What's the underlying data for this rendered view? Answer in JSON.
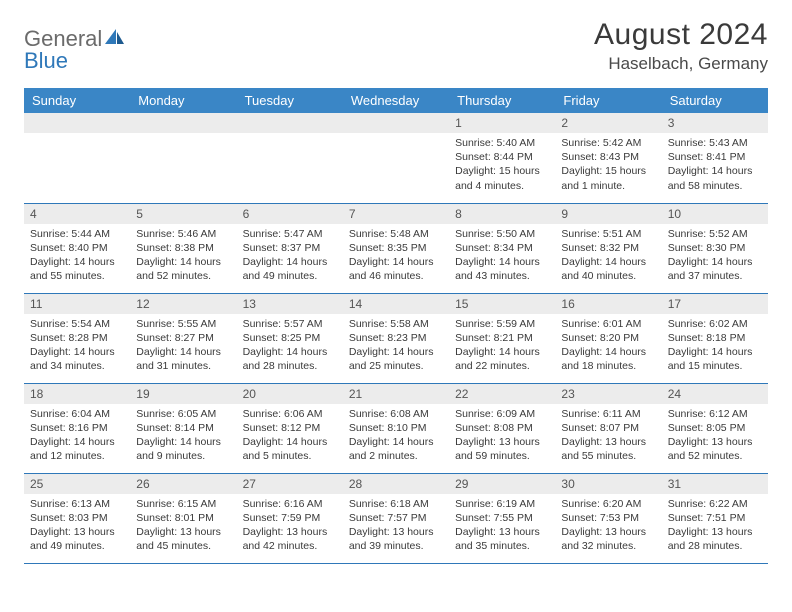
{
  "logo": {
    "part1": "General",
    "part2": "Blue"
  },
  "title": "August 2024",
  "location": "Haselbach, Germany",
  "colors": {
    "header_bg": "#3a86c6",
    "header_text": "#ffffff",
    "daynum_bg": "#ececec",
    "border": "#2f78b9",
    "logo_gray": "#6b6b6b",
    "logo_blue": "#2f78b9"
  },
  "daysOfWeek": [
    "Sunday",
    "Monday",
    "Tuesday",
    "Wednesday",
    "Thursday",
    "Friday",
    "Saturday"
  ],
  "firstWeekday": 4,
  "days": [
    {
      "n": "1",
      "sunrise": "5:40 AM",
      "sunset": "8:44 PM",
      "daylight": "15 hours and 4 minutes."
    },
    {
      "n": "2",
      "sunrise": "5:42 AM",
      "sunset": "8:43 PM",
      "daylight": "15 hours and 1 minute."
    },
    {
      "n": "3",
      "sunrise": "5:43 AM",
      "sunset": "8:41 PM",
      "daylight": "14 hours and 58 minutes."
    },
    {
      "n": "4",
      "sunrise": "5:44 AM",
      "sunset": "8:40 PM",
      "daylight": "14 hours and 55 minutes."
    },
    {
      "n": "5",
      "sunrise": "5:46 AM",
      "sunset": "8:38 PM",
      "daylight": "14 hours and 52 minutes."
    },
    {
      "n": "6",
      "sunrise": "5:47 AM",
      "sunset": "8:37 PM",
      "daylight": "14 hours and 49 minutes."
    },
    {
      "n": "7",
      "sunrise": "5:48 AM",
      "sunset": "8:35 PM",
      "daylight": "14 hours and 46 minutes."
    },
    {
      "n": "8",
      "sunrise": "5:50 AM",
      "sunset": "8:34 PM",
      "daylight": "14 hours and 43 minutes."
    },
    {
      "n": "9",
      "sunrise": "5:51 AM",
      "sunset": "8:32 PM",
      "daylight": "14 hours and 40 minutes."
    },
    {
      "n": "10",
      "sunrise": "5:52 AM",
      "sunset": "8:30 PM",
      "daylight": "14 hours and 37 minutes."
    },
    {
      "n": "11",
      "sunrise": "5:54 AM",
      "sunset": "8:28 PM",
      "daylight": "14 hours and 34 minutes."
    },
    {
      "n": "12",
      "sunrise": "5:55 AM",
      "sunset": "8:27 PM",
      "daylight": "14 hours and 31 minutes."
    },
    {
      "n": "13",
      "sunrise": "5:57 AM",
      "sunset": "8:25 PM",
      "daylight": "14 hours and 28 minutes."
    },
    {
      "n": "14",
      "sunrise": "5:58 AM",
      "sunset": "8:23 PM",
      "daylight": "14 hours and 25 minutes."
    },
    {
      "n": "15",
      "sunrise": "5:59 AM",
      "sunset": "8:21 PM",
      "daylight": "14 hours and 22 minutes."
    },
    {
      "n": "16",
      "sunrise": "6:01 AM",
      "sunset": "8:20 PM",
      "daylight": "14 hours and 18 minutes."
    },
    {
      "n": "17",
      "sunrise": "6:02 AM",
      "sunset": "8:18 PM",
      "daylight": "14 hours and 15 minutes."
    },
    {
      "n": "18",
      "sunrise": "6:04 AM",
      "sunset": "8:16 PM",
      "daylight": "14 hours and 12 minutes."
    },
    {
      "n": "19",
      "sunrise": "6:05 AM",
      "sunset": "8:14 PM",
      "daylight": "14 hours and 9 minutes."
    },
    {
      "n": "20",
      "sunrise": "6:06 AM",
      "sunset": "8:12 PM",
      "daylight": "14 hours and 5 minutes."
    },
    {
      "n": "21",
      "sunrise": "6:08 AM",
      "sunset": "8:10 PM",
      "daylight": "14 hours and 2 minutes."
    },
    {
      "n": "22",
      "sunrise": "6:09 AM",
      "sunset": "8:08 PM",
      "daylight": "13 hours and 59 minutes."
    },
    {
      "n": "23",
      "sunrise": "6:11 AM",
      "sunset": "8:07 PM",
      "daylight": "13 hours and 55 minutes."
    },
    {
      "n": "24",
      "sunrise": "6:12 AM",
      "sunset": "8:05 PM",
      "daylight": "13 hours and 52 minutes."
    },
    {
      "n": "25",
      "sunrise": "6:13 AM",
      "sunset": "8:03 PM",
      "daylight": "13 hours and 49 minutes."
    },
    {
      "n": "26",
      "sunrise": "6:15 AM",
      "sunset": "8:01 PM",
      "daylight": "13 hours and 45 minutes."
    },
    {
      "n": "27",
      "sunrise": "6:16 AM",
      "sunset": "7:59 PM",
      "daylight": "13 hours and 42 minutes."
    },
    {
      "n": "28",
      "sunrise": "6:18 AM",
      "sunset": "7:57 PM",
      "daylight": "13 hours and 39 minutes."
    },
    {
      "n": "29",
      "sunrise": "6:19 AM",
      "sunset": "7:55 PM",
      "daylight": "13 hours and 35 minutes."
    },
    {
      "n": "30",
      "sunrise": "6:20 AM",
      "sunset": "7:53 PM",
      "daylight": "13 hours and 32 minutes."
    },
    {
      "n": "31",
      "sunrise": "6:22 AM",
      "sunset": "7:51 PM",
      "daylight": "13 hours and 28 minutes."
    }
  ],
  "labels": {
    "sunrise": "Sunrise:",
    "sunset": "Sunset:",
    "daylight": "Daylight:"
  }
}
